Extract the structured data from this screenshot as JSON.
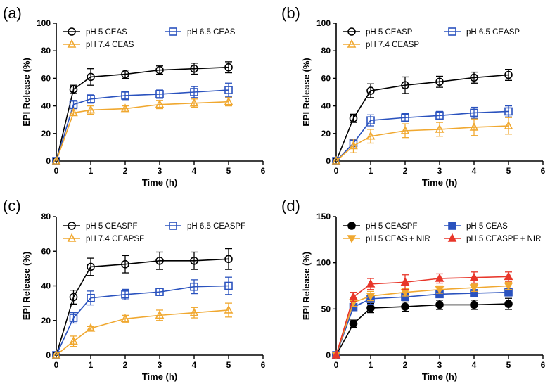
{
  "chart_data": [
    {
      "panel": "(a)",
      "type": "line",
      "xlabel": "Time (h)",
      "ylabel": "EPI Release (%)",
      "xlim": [
        0,
        6
      ],
      "ylim": [
        0,
        100
      ],
      "xticks": [
        "0",
        "1",
        "2",
        "3",
        "4",
        "5",
        "6"
      ],
      "yticks": [
        "0",
        "20",
        "40",
        "60",
        "80",
        "100"
      ],
      "x": [
        0,
        0.5,
        1,
        2,
        3,
        4,
        5
      ],
      "series": [
        {
          "name": "pH 5 CEAS",
          "color": "#000000",
          "marker": "circle",
          "values": [
            0,
            52,
            61,
            63,
            66,
            67,
            68
          ],
          "errors": [
            0,
            3,
            6,
            3,
            3,
            4,
            4
          ]
        },
        {
          "name": "pH 6.5 CEAS",
          "color": "#2a52be",
          "marker": "square",
          "values": [
            0,
            41,
            45,
            47.5,
            48.5,
            50,
            51.5
          ],
          "errors": [
            0,
            3,
            3,
            3,
            3,
            4,
            5
          ]
        },
        {
          "name": "pH 7.4 CEAS",
          "color": "#f0a830",
          "marker": "triangle-up",
          "values": [
            0,
            35,
            37,
            38,
            41,
            42,
            43
          ],
          "errors": [
            0,
            2,
            3,
            2,
            3,
            3,
            3
          ]
        }
      ]
    },
    {
      "panel": "(b)",
      "type": "line",
      "xlabel": "Time (h)",
      "ylabel": "EPI Release (%)",
      "xlim": [
        0,
        6
      ],
      "ylim": [
        0,
        100
      ],
      "xticks": [
        "0",
        "1",
        "2",
        "3",
        "4",
        "5",
        "6"
      ],
      "yticks": [
        "0",
        "20",
        "40",
        "60",
        "80",
        "100"
      ],
      "x": [
        0,
        0.5,
        1,
        2,
        3,
        4,
        5
      ],
      "series": [
        {
          "name": "pH 5 CEASP",
          "color": "#000000",
          "marker": "circle",
          "values": [
            0,
            31,
            51,
            55,
            57.5,
            60.5,
            62.5
          ],
          "errors": [
            0,
            3,
            5,
            6,
            4,
            4,
            4
          ]
        },
        {
          "name": "pH 6.5 CEASP",
          "color": "#2a52be",
          "marker": "square",
          "values": [
            0,
            13,
            29.5,
            31.5,
            33,
            35,
            36
          ],
          "errors": [
            0,
            2,
            4,
            3,
            3,
            4,
            4
          ]
        },
        {
          "name": "pH 7.4 CEASP",
          "color": "#f0a830",
          "marker": "triangle-up",
          "values": [
            0,
            11,
            18,
            22,
            23,
            24.5,
            25.5
          ],
          "errors": [
            0,
            5,
            5,
            5,
            5,
            6,
            6
          ]
        }
      ]
    },
    {
      "panel": "(c)",
      "type": "line",
      "xlabel": "Time (h)",
      "ylabel": "EPI Release (%)",
      "xlim": [
        0,
        6
      ],
      "ylim": [
        0,
        80
      ],
      "xticks": [
        "0",
        "1",
        "2",
        "3",
        "4",
        "5",
        "6"
      ],
      "yticks": [
        "0",
        "20",
        "40",
        "60",
        "80"
      ],
      "x": [
        0,
        0.5,
        1,
        2,
        3,
        4,
        5
      ],
      "series": [
        {
          "name": "pH 5 CEASPF",
          "color": "#000000",
          "marker": "circle",
          "values": [
            0,
            33.5,
            51,
            52.5,
            54.5,
            54.5,
            55.5
          ],
          "errors": [
            0,
            4,
            5,
            5,
            5,
            5,
            6
          ]
        },
        {
          "name": "pH 6.5 CEASPF",
          "color": "#2a52be",
          "marker": "square",
          "values": [
            0,
            21.5,
            33,
            35,
            36.5,
            39.5,
            40
          ],
          "errors": [
            0,
            3,
            4,
            3,
            2,
            4,
            5
          ]
        },
        {
          "name": "pH 7.4 CEAPSF",
          "color": "#f0a830",
          "marker": "triangle-up",
          "values": [
            0,
            8,
            15.5,
            21,
            23,
            24.5,
            26
          ],
          "errors": [
            0,
            3,
            1,
            2,
            3,
            3,
            4
          ]
        }
      ]
    },
    {
      "panel": "(d)",
      "type": "line",
      "xlabel": "Time (h)",
      "ylabel": "EPI Release (%)",
      "xlim": [
        0,
        6
      ],
      "ylim": [
        0,
        150
      ],
      "xticks": [
        "0",
        "1",
        "2",
        "3",
        "4",
        "5",
        "6"
      ],
      "yticks": [
        "0",
        "50",
        "100",
        "150"
      ],
      "x": [
        0,
        0.5,
        1,
        2,
        3,
        4,
        5
      ],
      "series": [
        {
          "name": "pH 5 CEASPF",
          "color": "#000000",
          "marker": "circle",
          "values": [
            0,
            34,
            51,
            52.5,
            54.5,
            54.5,
            55.5
          ],
          "errors": [
            0,
            4,
            5,
            5,
            5,
            5,
            6
          ]
        },
        {
          "name": "pH 5 CEAS",
          "color": "#2a52be",
          "marker": "square",
          "values": [
            0,
            52,
            61,
            63,
            66,
            67,
            68
          ],
          "errors": [
            0,
            3,
            6,
            3,
            3,
            4,
            4
          ]
        },
        {
          "name": "pH 5 CEAS + NIR",
          "color": "#f0a830",
          "marker": "triangle-down",
          "values": [
            0,
            57,
            64,
            68,
            71,
            73,
            75
          ],
          "errors": [
            0,
            4,
            5,
            4,
            4,
            4,
            4
          ]
        },
        {
          "name": "pH 5 CEASPF + NIR",
          "color": "#e8362a",
          "marker": "triangle-up",
          "values": [
            0,
            63,
            77,
            79,
            83,
            84,
            85
          ],
          "errors": [
            0,
            5,
            6,
            8,
            5,
            6,
            5
          ]
        }
      ]
    }
  ]
}
